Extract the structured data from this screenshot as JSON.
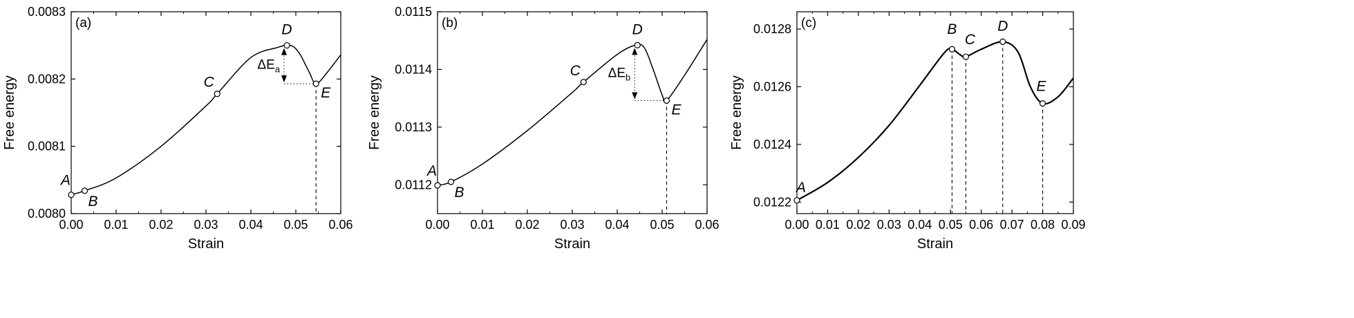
{
  "chart_data": [
    {
      "type": "line",
      "panel_label": "(a)",
      "xlabel": "Strain",
      "ylabel": "Free energy",
      "xlim": [
        0.0,
        0.06
      ],
      "ylim": [
        0.008,
        0.0083
      ],
      "xticks": [
        "0.00",
        "0.01",
        "0.02",
        "0.03",
        "0.04",
        "0.05",
        "0.06"
      ],
      "yticks": [
        "0.0080",
        "0.0081",
        "0.0082",
        "0.0083"
      ],
      "series": [
        {
          "x": [
            0.0,
            0.003,
            0.01,
            0.02,
            0.03,
            0.0325,
            0.04,
            0.046,
            0.048,
            0.0495,
            0.051,
            0.053,
            0.0545,
            0.057,
            0.06
          ],
          "y": [
            0.008028,
            0.008034,
            0.008053,
            0.0081,
            0.00816,
            0.008178,
            0.008232,
            0.008247,
            0.00825,
            0.008248,
            0.008236,
            0.00821,
            0.008193,
            0.00821,
            0.008236
          ]
        }
      ],
      "points": [
        {
          "label": "A",
          "x": 0.0,
          "y": 0.008028
        },
        {
          "label": "B",
          "x": 0.003,
          "y": 0.008034
        },
        {
          "label": "C",
          "x": 0.0325,
          "y": 0.008178
        },
        {
          "label": "D",
          "x": 0.048,
          "y": 0.00825
        },
        {
          "label": "E",
          "x": 0.0545,
          "y": 0.008193
        }
      ],
      "annotation": {
        "label": "ΔE",
        "subscript": "a"
      }
    },
    {
      "type": "line",
      "panel_label": "(b)",
      "xlabel": "Strain",
      "ylabel": "Free energy",
      "xlim": [
        0.0,
        0.06
      ],
      "ylim": [
        0.01115,
        0.0115
      ],
      "xticks": [
        "0.00",
        "0.01",
        "0.02",
        "0.03",
        "0.04",
        "0.05",
        "0.06"
      ],
      "yticks": [
        "0.0112",
        "0.0113",
        "0.0114",
        "0.0115"
      ],
      "series": [
        {
          "x": [
            0.0,
            0.003,
            0.01,
            0.02,
            0.03,
            0.0325,
            0.04,
            0.044,
            0.046,
            0.048,
            0.05,
            0.051,
            0.055,
            0.06
          ],
          "y": [
            0.011199,
            0.011205,
            0.011236,
            0.011294,
            0.01136,
            0.011378,
            0.011426,
            0.011442,
            0.011438,
            0.0114,
            0.011356,
            0.011346,
            0.01139,
            0.011452
          ]
        }
      ],
      "points": [
        {
          "label": "A",
          "x": 0.0,
          "y": 0.011199
        },
        {
          "label": "B",
          "x": 0.003,
          "y": 0.011205
        },
        {
          "label": "C",
          "x": 0.0325,
          "y": 0.011378
        },
        {
          "label": "D",
          "x": 0.0445,
          "y": 0.011442
        },
        {
          "label": "E",
          "x": 0.051,
          "y": 0.011346
        }
      ],
      "annotation": {
        "label": "ΔE",
        "subscript": "b"
      }
    },
    {
      "type": "line",
      "panel_label": "(c)",
      "xlabel": "Strain",
      "ylabel": "Free energy",
      "xlim": [
        0.0,
        0.09
      ],
      "ylim": [
        0.01216,
        0.01286
      ],
      "xticks": [
        "0.00",
        "0.01",
        "0.02",
        "0.03",
        "0.04",
        "0.05",
        "0.06",
        "0.07",
        "0.08",
        "0.09"
      ],
      "yticks": [
        "0.0122",
        "0.0124",
        "0.0126",
        "0.0128"
      ],
      "series": [
        {
          "x": [
            0.0,
            0.01,
            0.02,
            0.03,
            0.04,
            0.048,
            0.0505,
            0.053,
            0.055,
            0.06,
            0.067,
            0.072,
            0.076,
            0.08,
            0.085,
            0.09
          ],
          "y": [
            0.012206,
            0.012268,
            0.012355,
            0.012466,
            0.012605,
            0.012718,
            0.01273,
            0.012712,
            0.012704,
            0.01273,
            0.012756,
            0.01272,
            0.0126,
            0.012542,
            0.012565,
            0.01263
          ]
        }
      ],
      "points": [
        {
          "label": "A",
          "x": 0.0,
          "y": 0.012206
        },
        {
          "label": "B",
          "x": 0.0505,
          "y": 0.01273
        },
        {
          "label": "C",
          "x": 0.055,
          "y": 0.012704
        },
        {
          "label": "D",
          "x": 0.067,
          "y": 0.012756
        },
        {
          "label": "E",
          "x": 0.08,
          "y": 0.012542
        }
      ]
    }
  ]
}
